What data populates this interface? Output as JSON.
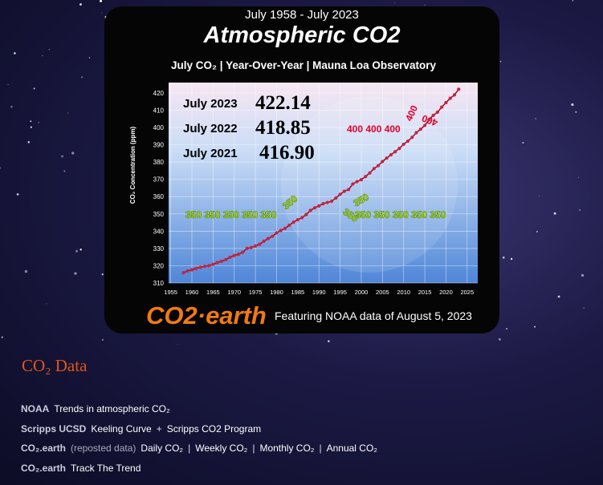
{
  "chart_data": {
    "type": "line",
    "supertitle": "July 1958 - July 2023",
    "title": "Atmospheric CO2",
    "subtitle": "July CO₂   |   Year-Over-Year   |   Mauna Loa Observatory",
    "y_label": "CO₂ Concentration (ppm)",
    "x": [
      1958,
      1959,
      1960,
      1961,
      1962,
      1963,
      1964,
      1965,
      1966,
      1967,
      1968,
      1969,
      1970,
      1971,
      1972,
      1973,
      1974,
      1975,
      1976,
      1977,
      1978,
      1979,
      1980,
      1981,
      1982,
      1983,
      1984,
      1985,
      1986,
      1987,
      1988,
      1989,
      1990,
      1991,
      1992,
      1993,
      1994,
      1995,
      1996,
      1997,
      1998,
      1999,
      2000,
      2001,
      2002,
      2003,
      2004,
      2005,
      2006,
      2007,
      2008,
      2009,
      2010,
      2011,
      2012,
      2013,
      2014,
      2015,
      2016,
      2017,
      2018,
      2019,
      2020,
      2021,
      2022,
      2023
    ],
    "values": [
      315.9,
      317.0,
      317.6,
      318.4,
      319.1,
      319.6,
      320.0,
      320.8,
      321.8,
      322.6,
      323.5,
      324.9,
      325.9,
      326.6,
      327.8,
      330.0,
      330.5,
      331.4,
      332.4,
      334.2,
      335.7,
      337.0,
      339.0,
      340.4,
      341.6,
      343.4,
      345.2,
      346.6,
      347.8,
      349.6,
      352.0,
      353.5,
      354.6,
      355.9,
      356.6,
      357.3,
      359.2,
      361.3,
      363.1,
      364.1,
      367.3,
      368.7,
      369.8,
      371.6,
      373.7,
      376.2,
      377.9,
      380.3,
      382.3,
      384.2,
      386.0,
      387.9,
      390.3,
      392.1,
      394.3,
      397.0,
      399.0,
      401.2,
      404.6,
      407.0,
      408.9,
      411.8,
      414.4,
      416.9,
      418.85,
      422.14
    ],
    "color": "#d0203a",
    "line_color": "#7a1030",
    "xlim": [
      1954.5,
      2027.5
    ],
    "ylim": [
      310,
      426
    ],
    "xticks": [
      1955,
      1960,
      1965,
      1970,
      1975,
      1980,
      1985,
      1990,
      1995,
      2000,
      2005,
      2010,
      2015,
      2020,
      2025
    ],
    "yticks": [
      310,
      320,
      330,
      340,
      350,
      360,
      370,
      380,
      390,
      400,
      410,
      420
    ],
    "grid": true,
    "highlights": [
      {
        "label": "July 2023",
        "value": "422.14"
      },
      {
        "label": "July 2022",
        "value": "418.85"
      },
      {
        "label": "July 2021",
        "value": "416.90"
      }
    ],
    "annotations": [
      "350 350 350 350 350",
      "350",
      "350",
      "350",
      "350 350 350 350 350",
      "400 400 400",
      "400",
      "400"
    ],
    "logo": "CO2·earth",
    "footer": "Featuring NOAA data of August 5, 2023"
  },
  "page": {
    "heading": "CO₂ Data",
    "rows": [
      {
        "source": "NOAA",
        "items": [
          "Trends in atmospheric CO₂"
        ]
      },
      {
        "source": "Scripps UCSD",
        "separator": "+",
        "items": [
          "Keeling Curve",
          "Scripps CO2 Program"
        ]
      },
      {
        "source": "CO₂.earth",
        "note": "(reposted data)",
        "separator": "|",
        "items": [
          "Daily CO₂",
          "Weekly CO₂",
          "Monthly CO₂",
          "Annual CO₂"
        ]
      },
      {
        "source": "CO₂.earth",
        "items": [
          "Track The Trend"
        ]
      }
    ]
  }
}
